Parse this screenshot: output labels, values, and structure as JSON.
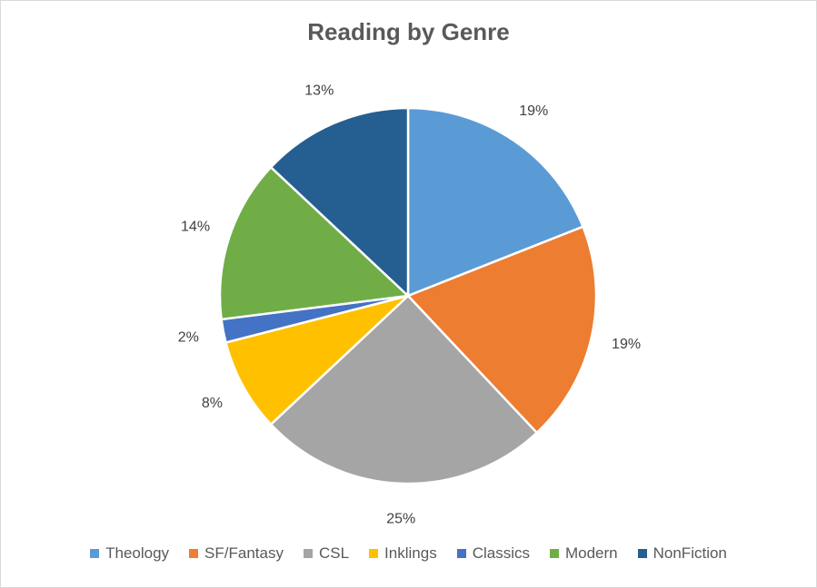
{
  "chart_data": {
    "type": "pie",
    "title": "Reading by Genre",
    "legend_position": "bottom",
    "categories": [
      "Theology",
      "SF/Fantasy",
      "CSL",
      "Inklings",
      "Classics",
      "Modern",
      "NonFiction"
    ],
    "values": [
      19,
      19,
      25,
      8,
      2,
      14,
      13
    ],
    "labels": [
      "19%",
      "19%",
      "25%",
      "8%",
      "2%",
      "14%",
      "13%"
    ],
    "colors": [
      "#5b9bd5",
      "#ed7d31",
      "#a5a5a5",
      "#ffc000",
      "#4472c4",
      "#70ad47",
      "#255e91"
    ]
  }
}
